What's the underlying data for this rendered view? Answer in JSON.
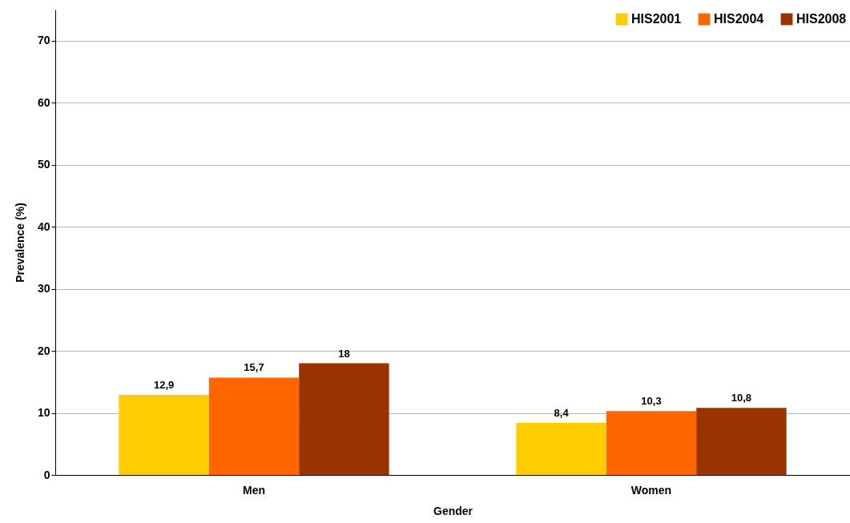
{
  "chart_data": {
    "type": "bar",
    "xlabel": "Gender",
    "ylabel": "Prevalence (%)",
    "categories": [
      "Men",
      "Women"
    ],
    "series": [
      {
        "name": "HIS2001",
        "color": "#ffcc00",
        "values": [
          12.9,
          8.4
        ],
        "value_labels": [
          "12,9",
          "8,4"
        ]
      },
      {
        "name": "HIS2004",
        "color": "#ff6600",
        "values": [
          15.7,
          10.3
        ],
        "value_labels": [
          "15,7",
          "10,3"
        ]
      },
      {
        "name": "HIS2008",
        "color": "#993300",
        "values": [
          18,
          10.8
        ],
        "value_labels": [
          "18",
          "10,8"
        ]
      }
    ],
    "ylim": [
      0,
      75
    ],
    "yticks": [
      0,
      10,
      20,
      30,
      40,
      50,
      60,
      70
    ],
    "grid": "y",
    "legend": "top right"
  }
}
